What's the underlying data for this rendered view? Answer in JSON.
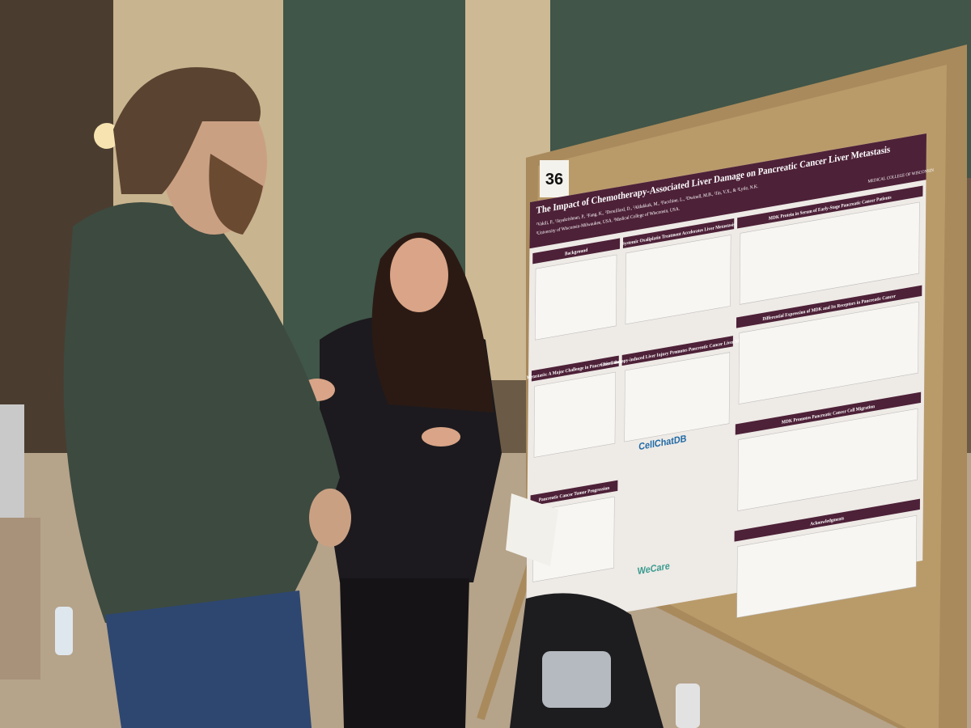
{
  "placard": "36",
  "poster": {
    "title": "The Impact of Chemotherapy-Associated Liver Damage on Pancreatic Cancer Liver Metastasis",
    "authors": "¹Vakili, P., ¹Jayakrishnan, P., ²Fang, K., ²Drouillard, D., ²Aldakkak, M., ²Facchine, L., ²Dwinell, M.B., ²Jin, V.X., & ²Lytle, N.K.",
    "affiliations": "¹University of Wisconsin-Milwaukee, USA. ²Medical College of Wisconsin, USA.",
    "institution": "MEDICAL COLLEGE OF WISCONSIN",
    "sections": [
      "Background",
      "Systemic Oxaliplatin Treatment Accelerates Liver Metastasis",
      "MDK Protein in Serum of Early-Stage Pancreatic Cancer Patients",
      "Metastasis: A Major Challenge in Pancreatic Cancer",
      "Chemotherapy-induced Liver Injury Promotes Pancreatic Cancer Liver Metastasis",
      "Differential Expression of MDK and Its Receptors in Pancreatic Cancer",
      "Pancreatic Cancer Tumor Progression",
      "MDK Promotes Pancreatic Cancer Cell Migration",
      "Acknowledgments"
    ],
    "logos": [
      "CellChatDB",
      "WeCare"
    ]
  }
}
